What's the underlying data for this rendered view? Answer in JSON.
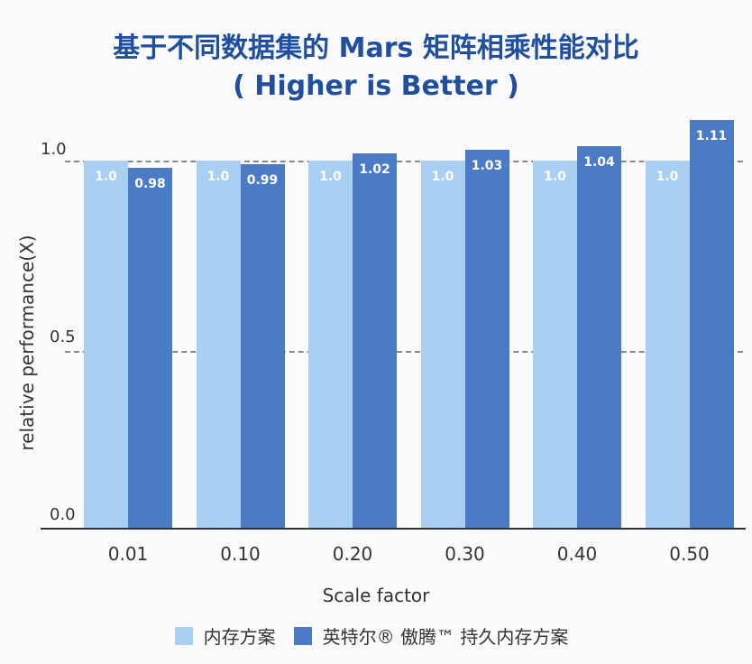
{
  "title_line1": "基于不同数据集的 Mars 矩阵相乘性能对比",
  "title_line2": "( Higher is Better )",
  "chart_data": {
    "type": "bar",
    "title": "基于不同数据集的 Mars 矩阵相乘性能对比 ( Higher is Better )",
    "xlabel": "Scale factor",
    "ylabel": "relative performance(X)",
    "categories": [
      "0.01",
      "0.10",
      "0.20",
      "0.30",
      "0.40",
      "0.50"
    ],
    "series": [
      {
        "name": "内存方案",
        "color": "#a9d0f2",
        "values": [
          1.0,
          1.0,
          1.0,
          1.0,
          1.0,
          1.0
        ],
        "labels": [
          "1.0",
          "1.0",
          "1.0",
          "1.0",
          "1.0",
          "1.0"
        ]
      },
      {
        "name": "英特尔® 傲腾™ 持久内存方案",
        "color": "#4a7bc4",
        "values": [
          0.98,
          0.99,
          1.02,
          1.03,
          1.04,
          1.11
        ],
        "labels": [
          "0.98",
          "0.99",
          "1.02",
          "1.03",
          "1.04",
          "1.11"
        ]
      }
    ],
    "yticks": [
      "0.0",
      "0.5",
      "1.0"
    ],
    "ylim": [
      0,
      1.1
    ],
    "grid": true,
    "legend_position": "bottom"
  }
}
